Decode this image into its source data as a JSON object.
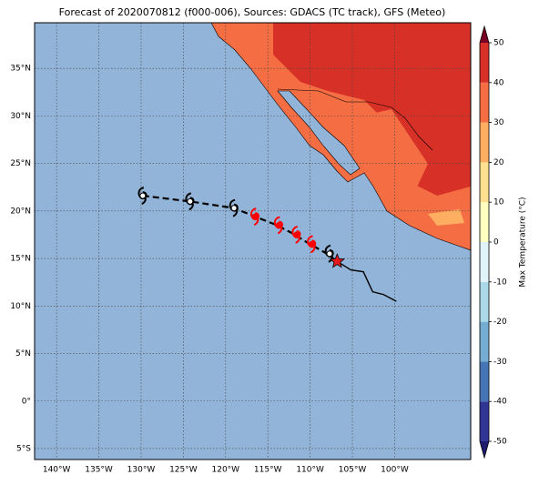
{
  "chart_data": {
    "type": "map",
    "title": "Forecast of 2020070812 (f000-006), Sources: GDACS (TC track), GFS (Meteo)",
    "xlim": [
      -142.6,
      -91.0
    ],
    "ylim": [
      -6.15,
      39.8
    ],
    "xticks": [
      {
        "value": -140,
        "label": "140°W"
      },
      {
        "value": -135,
        "label": "135°W"
      },
      {
        "value": -130,
        "label": "130°W"
      },
      {
        "value": -125,
        "label": "125°W"
      },
      {
        "value": -120,
        "label": "120°W"
      },
      {
        "value": -115,
        "label": "115°W"
      },
      {
        "value": -110,
        "label": "110°W"
      },
      {
        "value": -105,
        "label": "105°W"
      },
      {
        "value": -100,
        "label": "100°W"
      }
    ],
    "yticks": [
      {
        "value": -5,
        "label": "5°S"
      },
      {
        "value": 0,
        "label": "0°"
      },
      {
        "value": 5,
        "label": "5°N"
      },
      {
        "value": 10,
        "label": "10°N"
      },
      {
        "value": 15,
        "label": "15°N"
      },
      {
        "value": 20,
        "label": "20°N"
      },
      {
        "value": 25,
        "label": "25°N"
      },
      {
        "value": 30,
        "label": "30°N"
      },
      {
        "value": 35,
        "label": "35°N"
      }
    ],
    "grid": true,
    "forecast_track": {
      "x": [
        -129.8,
        -124.2,
        -119.0,
        -116.5,
        -114.2,
        -112.2,
        -110.2,
        -108.2,
        -106.8
      ],
      "y": [
        21.6,
        21.0,
        20.3,
        19.4,
        18.6,
        17.7,
        16.6,
        15.6,
        14.7
      ],
      "color": "#000000"
    },
    "observed_track": {
      "x": [
        -106.8,
        -105.2,
        -103.7,
        -102.6,
        -101.3,
        -99.8
      ],
      "y": [
        14.7,
        13.8,
        13.6,
        11.5,
        11.2,
        10.5
      ],
      "color": "#000000"
    },
    "symbols": {
      "x": [
        -129.8,
        -124.2,
        -119.0,
        -116.5,
        -113.7,
        -111.6,
        -109.8,
        -107.7
      ],
      "y": [
        21.6,
        21.0,
        20.3,
        19.4,
        18.5,
        17.5,
        16.5,
        15.5
      ],
      "colors": [
        "#ffffff",
        "#ffffff",
        "#ffffff",
        "#ff0000",
        "#ff0000",
        "#ff0000",
        "#ff0000",
        "#ffffff"
      ]
    },
    "position": {
      "x": -106.8,
      "y": 14.7,
      "color": "#e8191c"
    },
    "colorbar": {
      "label": "Max Temperature (°C)",
      "lim": [
        -50,
        50
      ],
      "ticks": [
        -50,
        -40,
        -30,
        -20,
        -10,
        0,
        10,
        20,
        30,
        40,
        50
      ],
      "colors": [
        "#313695",
        "#4575b4",
        "#74add1",
        "#abd9e9",
        "#e0f3f8",
        "#ffffbf",
        "#fee090",
        "#fdae61",
        "#f46d43",
        "#d73027",
        "#a50026"
      ],
      "under_color": "#1e1a6e",
      "over_color": "#7a0025"
    }
  }
}
